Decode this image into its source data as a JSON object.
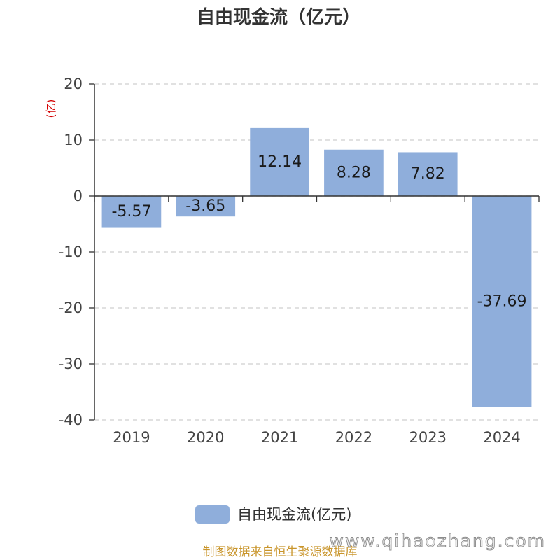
{
  "chart_data": {
    "type": "bar",
    "title": "自由现金流（亿元）",
    "ylabel": "(亿)",
    "categories": [
      "2019",
      "2020",
      "2021",
      "2022",
      "2023",
      "2024"
    ],
    "series": [
      {
        "name": "自由现金流(亿元)",
        "values": [
          -5.57,
          -3.65,
          12.14,
          8.28,
          7.82,
          -37.69
        ]
      }
    ],
    "ylim": [
      -40,
      20
    ],
    "yticks": [
      20,
      10,
      0,
      -10,
      -20,
      -30,
      -40
    ],
    "grid": true,
    "legend": "bottom-center"
  },
  "colors": {
    "bar": "#8FAEDB",
    "y_label": "#D40000",
    "source_note": "#C9952B"
  },
  "watermark": "www.qihaozhang.com",
  "source_note": "制图数据来自恒生聚源数据库"
}
